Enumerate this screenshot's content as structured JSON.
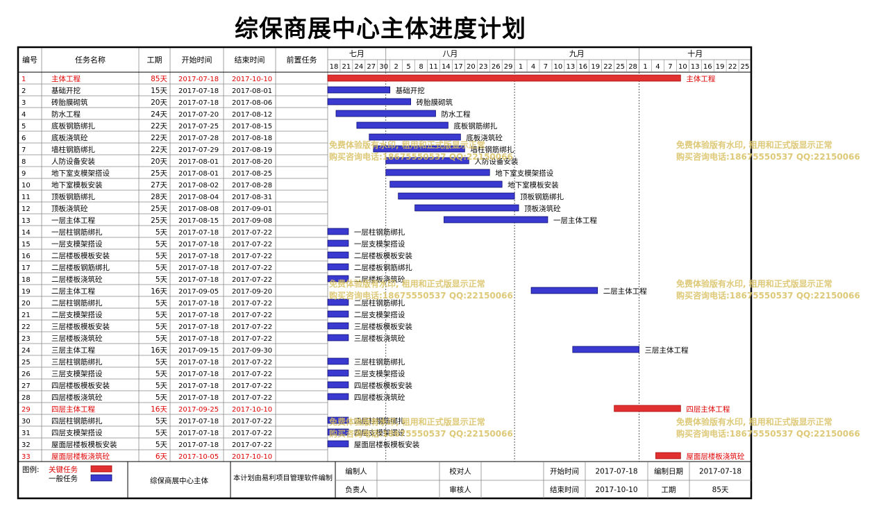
{
  "title": "综保商展中心主体进度计划",
  "columns": [
    "编号",
    "任务名称",
    "工期",
    "开始时间",
    "结束时间",
    "前置任务"
  ],
  "months": [
    {
      "label": "七月",
      "start": "2017-07-18",
      "end": "2017-07-31"
    },
    {
      "label": "八月",
      "start": "2017-08-01",
      "end": "2017-08-31"
    },
    {
      "label": "九月",
      "start": "2017-09-01",
      "end": "2017-09-30"
    },
    {
      "label": "十月",
      "start": "2017-10-01",
      "end": "2017-10-27"
    }
  ],
  "day_ticks": [
    "2017-07-18",
    "2017-07-21",
    "2017-07-24",
    "2017-07-27",
    "2017-07-30",
    "2017-08-02",
    "2017-08-05",
    "2017-08-08",
    "2017-08-11",
    "2017-08-14",
    "2017-08-17",
    "2017-08-20",
    "2017-08-23",
    "2017-08-26",
    "2017-08-29",
    "2017-09-01",
    "2017-09-04",
    "2017-09-07",
    "2017-09-10",
    "2017-09-13",
    "2017-09-16",
    "2017-09-19",
    "2017-09-22",
    "2017-09-25",
    "2017-09-28",
    "2017-10-01",
    "2017-10-04",
    "2017-10-07",
    "2017-10-10",
    "2017-10-13",
    "2017-10-16",
    "2017-10-19",
    "2017-10-22",
    "2017-10-25"
  ],
  "day_tick_labels": [
    "18",
    "21",
    "24",
    "27",
    "30",
    "2",
    "5",
    "8",
    "11",
    "14",
    "17",
    "20",
    "23",
    "26",
    "29",
    "1",
    "4",
    "7",
    "10",
    "13",
    "16",
    "19",
    "22",
    "25",
    "28",
    "1",
    "4",
    "7",
    "10",
    "13",
    "16",
    "19",
    "22",
    "25"
  ],
  "colors": {
    "critical": "#e03030",
    "normal": "#3a3ad0",
    "critical_text": "#e00000",
    "grid": "#9a9a9a",
    "watermark": "#d8c060"
  },
  "chart_data": {
    "type": "gantt",
    "x_range": [
      "2017-07-18",
      "2017-10-27"
    ],
    "tasks": [
      {
        "id": "1",
        "name": "主体工程",
        "duration": "85天",
        "start": "2017-07-18",
        "end": "2017-10-10",
        "critical": true
      },
      {
        "id": "2",
        "name": "基础开挖",
        "duration": "15天",
        "start": "2017-07-18",
        "end": "2017-08-01",
        "critical": false
      },
      {
        "id": "3",
        "name": "砖胎膜砌筑",
        "duration": "20天",
        "start": "2017-07-18",
        "end": "2017-08-06",
        "critical": false
      },
      {
        "id": "4",
        "name": "防水工程",
        "duration": "24天",
        "start": "2017-07-20",
        "end": "2017-08-12",
        "critical": false
      },
      {
        "id": "5",
        "name": "底板钢筋绑扎",
        "duration": "22天",
        "start": "2017-07-25",
        "end": "2017-08-15",
        "critical": false
      },
      {
        "id": "6",
        "name": "底板浇筑砼",
        "duration": "22天",
        "start": "2017-07-28",
        "end": "2017-08-18",
        "critical": false
      },
      {
        "id": "7",
        "name": "墙柱钢筋绑扎",
        "duration": "22天",
        "start": "2017-07-29",
        "end": "2017-08-19",
        "critical": false
      },
      {
        "id": "8",
        "name": "人防设备安装",
        "duration": "20天",
        "start": "2017-08-01",
        "end": "2017-08-20",
        "critical": false
      },
      {
        "id": "9",
        "name": "地下室支模架搭设",
        "duration": "25天",
        "start": "2017-08-01",
        "end": "2017-08-25",
        "critical": false
      },
      {
        "id": "10",
        "name": "地下室模板安装",
        "duration": "27天",
        "start": "2017-08-02",
        "end": "2017-08-28",
        "critical": false
      },
      {
        "id": "11",
        "name": "顶板钢筋绑扎",
        "duration": "28天",
        "start": "2017-08-04",
        "end": "2017-08-31",
        "critical": false
      },
      {
        "id": "12",
        "name": "顶板浇筑砼",
        "duration": "25天",
        "start": "2017-08-08",
        "end": "2017-09-01",
        "critical": false
      },
      {
        "id": "13",
        "name": "一层主体工程",
        "duration": "25天",
        "start": "2017-08-15",
        "end": "2017-09-08",
        "critical": false
      },
      {
        "id": "14",
        "name": "一层柱钢筋绑扎",
        "duration": "5天",
        "start": "2017-07-18",
        "end": "2017-07-22",
        "critical": false
      },
      {
        "id": "15",
        "name": "一层支模架搭设",
        "duration": "5天",
        "start": "2017-07-18",
        "end": "2017-07-22",
        "critical": false
      },
      {
        "id": "16",
        "name": "二层楼板模板安装",
        "duration": "5天",
        "start": "2017-07-18",
        "end": "2017-07-22",
        "critical": false
      },
      {
        "id": "17",
        "name": "二层楼板钢筋绑扎",
        "duration": "5天",
        "start": "2017-07-18",
        "end": "2017-07-22",
        "critical": false
      },
      {
        "id": "18",
        "name": "二层楼板浇筑砼",
        "duration": "5天",
        "start": "2017-07-18",
        "end": "2017-07-22",
        "critical": false
      },
      {
        "id": "19",
        "name": "二层主体工程",
        "duration": "16天",
        "start": "2017-09-05",
        "end": "2017-09-20",
        "critical": false
      },
      {
        "id": "20",
        "name": "二层柱钢筋绑扎",
        "duration": "5天",
        "start": "2017-07-18",
        "end": "2017-07-22",
        "critical": false
      },
      {
        "id": "21",
        "name": "二层支模架搭设",
        "duration": "5天",
        "start": "2017-07-18",
        "end": "2017-07-22",
        "critical": false
      },
      {
        "id": "22",
        "name": "三层楼板模板安装",
        "duration": "5天",
        "start": "2017-07-18",
        "end": "2017-07-22",
        "critical": false
      },
      {
        "id": "23",
        "name": "三层楼板浇筑砼",
        "duration": "5天",
        "start": "2017-07-18",
        "end": "2017-07-22",
        "critical": false
      },
      {
        "id": "24",
        "name": "三层主体工程",
        "duration": "16天",
        "start": "2017-09-15",
        "end": "2017-09-30",
        "critical": false
      },
      {
        "id": "25",
        "name": "三层柱钢筋绑扎",
        "duration": "5天",
        "start": "2017-07-18",
        "end": "2017-07-22",
        "critical": false
      },
      {
        "id": "26",
        "name": "三层支模架搭设",
        "duration": "5天",
        "start": "2017-07-18",
        "end": "2017-07-22",
        "critical": false
      },
      {
        "id": "27",
        "name": "四层楼板模板安装",
        "duration": "5天",
        "start": "2017-07-18",
        "end": "2017-07-22",
        "critical": false
      },
      {
        "id": "28",
        "name": "四层楼板浇筑砼",
        "duration": "5天",
        "start": "2017-07-18",
        "end": "2017-07-22",
        "critical": false
      },
      {
        "id": "29",
        "name": "四层主体工程",
        "duration": "16天",
        "start": "2017-09-25",
        "end": "2017-10-10",
        "critical": true
      },
      {
        "id": "30",
        "name": "四层柱钢筋绑扎",
        "duration": "5天",
        "start": "2017-07-18",
        "end": "2017-07-22",
        "critical": false
      },
      {
        "id": "31",
        "name": "四层支模架搭设",
        "duration": "5天",
        "start": "2017-07-18",
        "end": "2017-07-22",
        "critical": false
      },
      {
        "id": "32",
        "name": "屋面层楼板模板安装",
        "duration": "5天",
        "start": "2017-07-18",
        "end": "2017-07-22",
        "critical": false
      },
      {
        "id": "33",
        "name": "屋面层楼板浇筑砼",
        "duration": "6天",
        "start": "2017-10-05",
        "end": "2017-10-10",
        "critical": true
      }
    ]
  },
  "legend": {
    "prefix": "图例:",
    "critical_label": "关键任务",
    "normal_label": "一般任务"
  },
  "footer": {
    "project_name": "综保商展中心主体",
    "note": "本计划由易利项目管理软件编制",
    "editor_label": "编制人",
    "checker_label": "校对人",
    "responsible_label": "负责人",
    "reviewer_label": "审核人",
    "start_label": "开始时间",
    "start_value": "2017-07-18",
    "date_label": "编制日期",
    "date_value": "2017-07-18",
    "end_label": "结束时间",
    "end_value": "2017-10-10",
    "duration_label": "工期",
    "duration_value": "85天"
  },
  "watermark": {
    "line1": "免费体验版有水印, 租用和正式版显示正常",
    "line2": "购买咨询电话:18675550537 QQ:22150066"
  }
}
